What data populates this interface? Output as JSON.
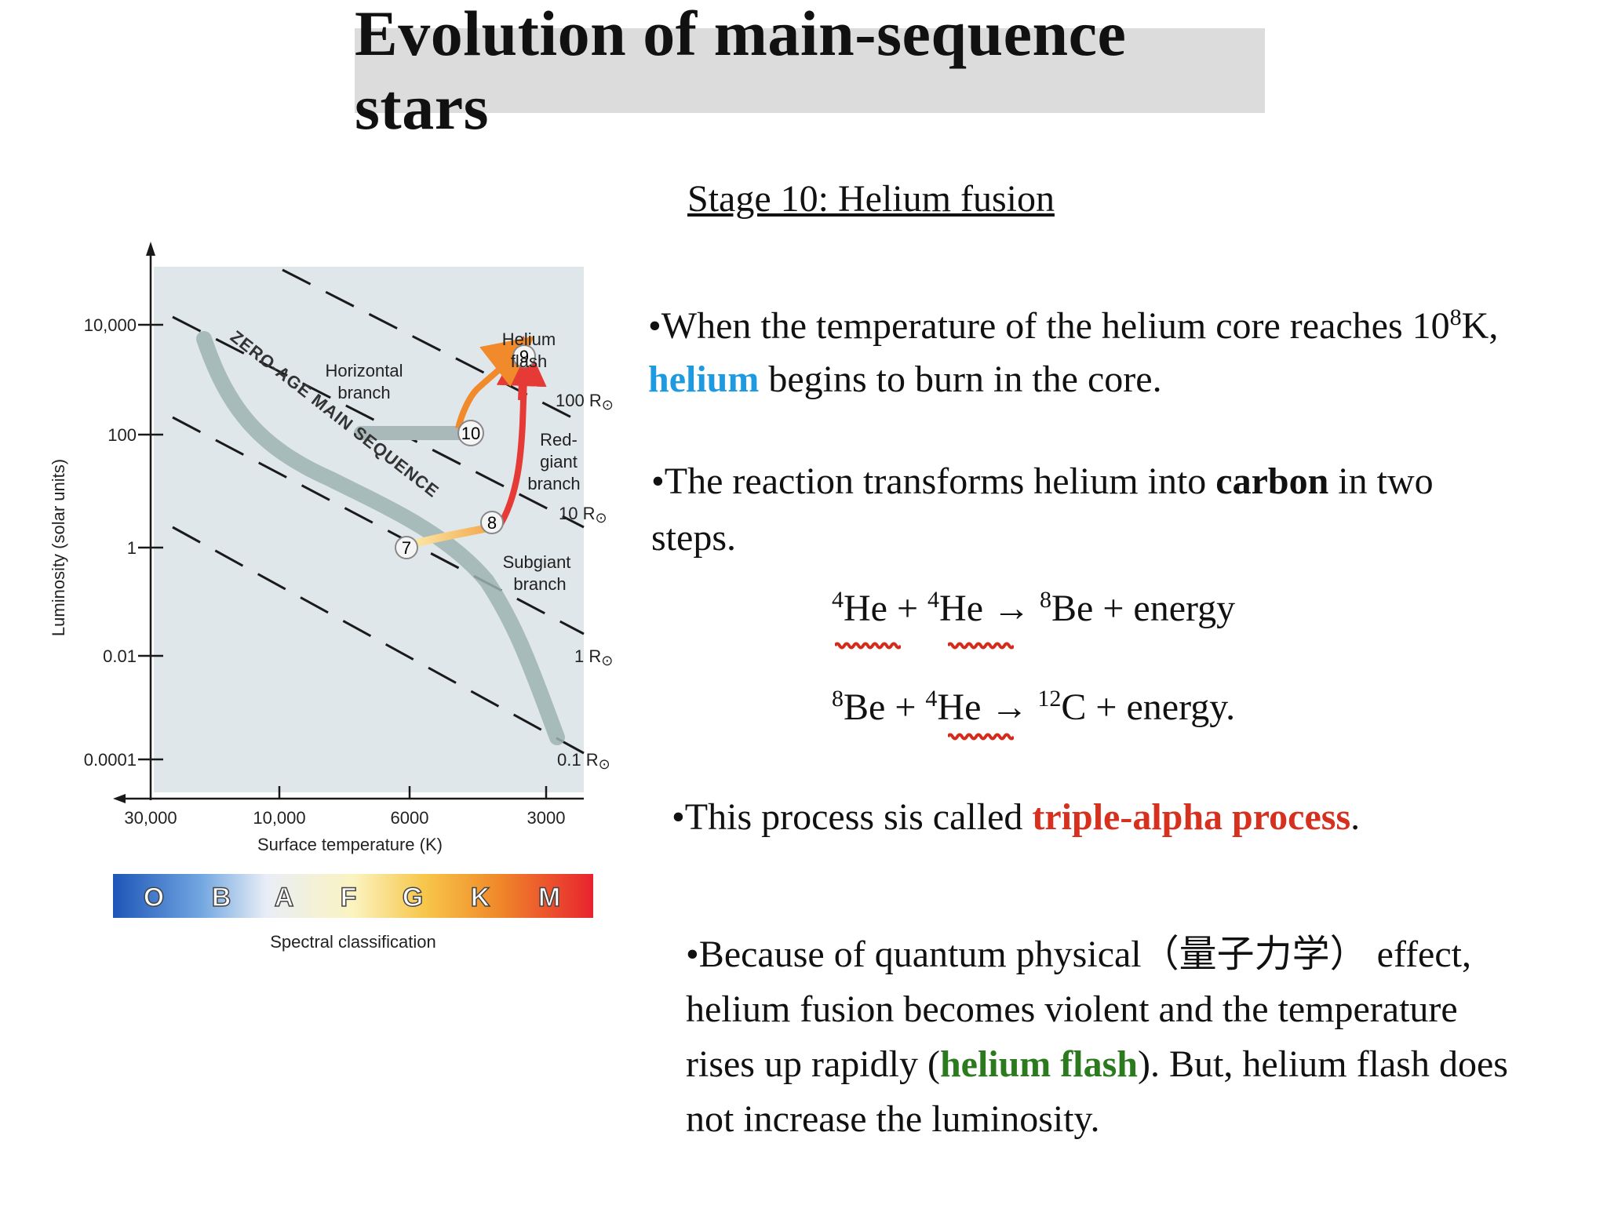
{
  "title": "Evolution of main-sequence stars",
  "stage_heading": "Stage 10: Helium fusion",
  "bullet1": {
    "pre": "•When the temperature of the helium core reaches 10",
    "exp": "8",
    "post": "K,",
    "line2_highlight": "helium",
    "line2_rest": " begins to burn in the core."
  },
  "bullet2": {
    "line1_pre": "•The reaction transforms helium into ",
    "line1_bold": "carbon",
    "line1_post": " in two",
    "line2": "steps."
  },
  "equation1": {
    "a_sup": "4",
    "a": "He",
    "plus1": " + ",
    "b_sup": "4",
    "b": "He",
    "arrow": " → ",
    "c_sup": "8",
    "c": "Be",
    "plus2": " +  ",
    "d": "energy"
  },
  "equation2": {
    "a_sup": "8",
    "a": "Be",
    "plus1": " + ",
    "b_sup": "4",
    "b": "He",
    "arrow": " → ",
    "c_sup": "12",
    "c": "C",
    "plus2": " +  ",
    "d": "energy."
  },
  "bullet3": {
    "pre": "•This process sis called ",
    "highlight": "triple-alpha process",
    "post": "."
  },
  "bullet4": {
    "line1": "•Because of quantum physical（量子力学） effect,",
    "line2": "helium fusion becomes violent and the temperature",
    "line3_pre": "rises up rapidly (",
    "line3_highlight": "helium flash",
    "line3_post": "). But, helium flash does",
    "line4": "not increase the luminosity."
  },
  "colors": {
    "helium_blue": "#1e9be0",
    "triple_alpha_red": "#d6301f",
    "helium_flash_green": "#2b7a1e",
    "underline_red": "#d62a1a",
    "title_bg": "#dcdcdc"
  },
  "hr_diagram": {
    "y_axis_label": "Luminosity (solar units)",
    "y_ticks": [
      "10,000",
      "100",
      "1",
      "0.01",
      "0.0001"
    ],
    "x_axis_label": "Surface temperature (K)",
    "x_ticks": [
      "30,000",
      "10,000",
      "6000",
      "3000"
    ],
    "radius_labels": [
      "100 R",
      "10 R",
      "1 R",
      "0.1 R"
    ],
    "sun_symbol": "⊙",
    "main_sequence_label": "ZERO-AGE MAIN SEQUENCE",
    "region_labels": {
      "horizontal_branch": [
        "Horizontal",
        "branch"
      ],
      "helium_flash": [
        "Helium",
        "flash"
      ],
      "red_giant_branch": [
        "Red-",
        "giant",
        "branch"
      ],
      "subgiant_branch": [
        "Subgiant",
        "branch"
      ]
    },
    "stage_points": [
      "7",
      "8",
      "9",
      "10"
    ],
    "spectral_classes": [
      "O",
      "B",
      "A",
      "F",
      "G",
      "K",
      "M"
    ],
    "spectral_label": "Spectral classification"
  }
}
